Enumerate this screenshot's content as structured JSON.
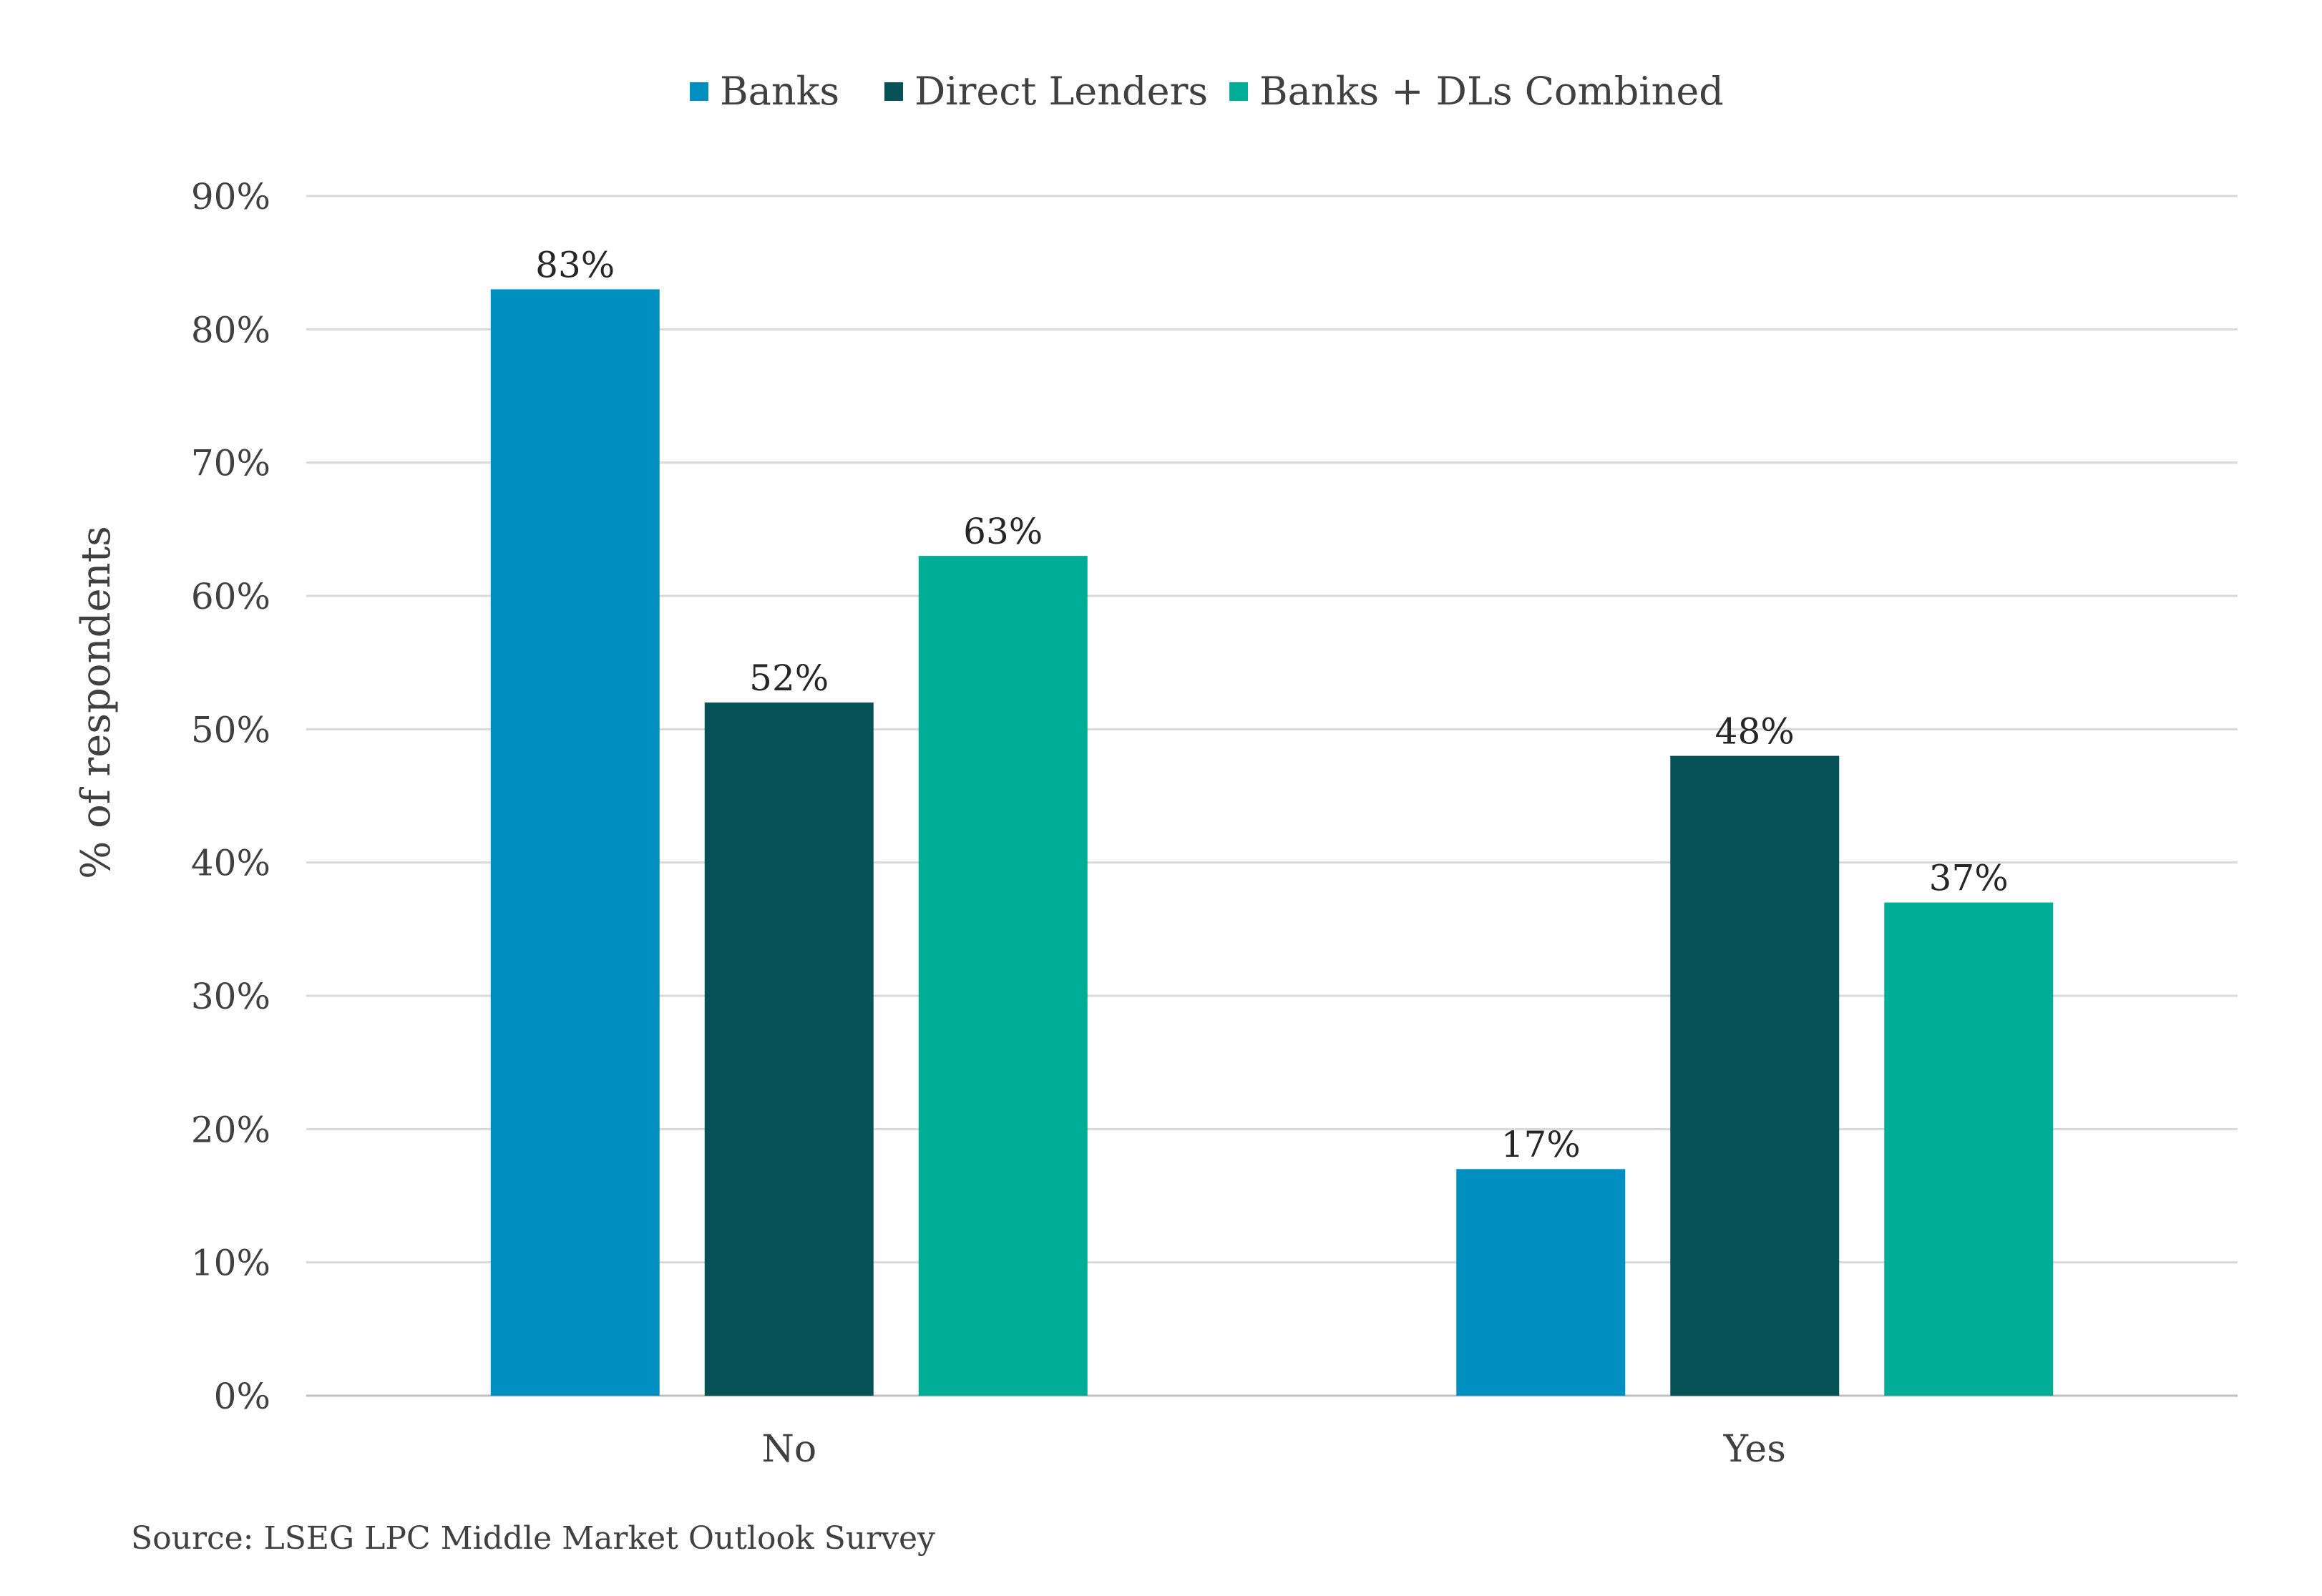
{
  "chart_data": {
    "type": "bar",
    "categories": [
      "No",
      "Yes"
    ],
    "series": [
      {
        "name": "Banks",
        "values": [
          83,
          17
        ],
        "labels": [
          "83%",
          "17%"
        ],
        "color": "#008FC1"
      },
      {
        "name": "Direct Lenders",
        "values": [
          52,
          48
        ],
        "labels": [
          "52%",
          "48%"
        ],
        "color": "#075257"
      },
      {
        "name": "Banks + DLs Combined",
        "values": [
          63,
          37
        ],
        "labels": [
          "63%",
          "37%"
        ],
        "color": "#00AD97"
      }
    ],
    "ylabel": "% of respondents",
    "ylim": [
      0,
      90
    ],
    "yticks": [
      0,
      10,
      20,
      30,
      40,
      50,
      60,
      70,
      80,
      90
    ],
    "ytick_labels": [
      "0%",
      "10%",
      "20%",
      "30%",
      "40%",
      "50%",
      "60%",
      "70%",
      "80%",
      "90%"
    ],
    "grid": true,
    "legend_position": "top-center",
    "gridline_color": "#D9D9D9"
  },
  "source": "Source: LSEG LPC Middle Market Outlook Survey"
}
